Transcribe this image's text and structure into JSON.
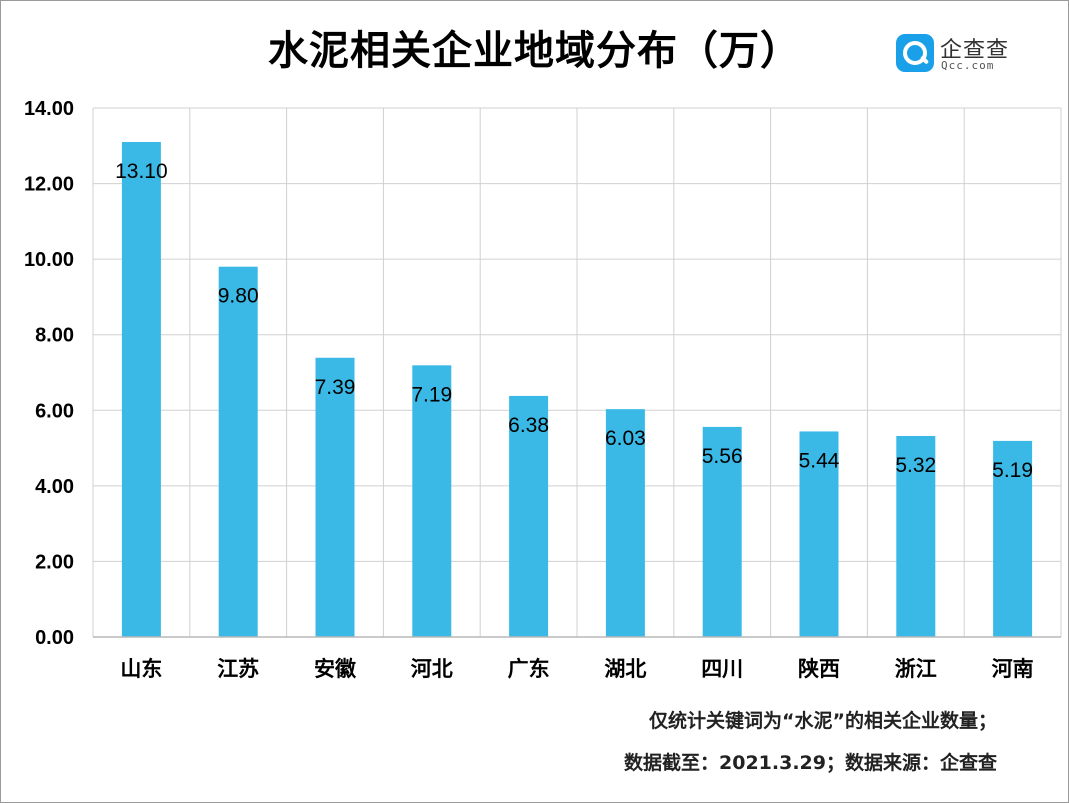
{
  "title": "水泥相关企业地域分布（万）",
  "logo": {
    "name": "企查查",
    "url": "Qcc.com"
  },
  "footnotes": [
    "仅统计关键词为“水泥”的相关企业数量；",
    "数据截至：2021.3.29；数据来源：企查查"
  ],
  "chart_data": {
    "type": "bar",
    "title": "水泥相关企业地域分布（万）",
    "categories": [
      "山东",
      "江苏",
      "安徽",
      "河北",
      "广东",
      "湖北",
      "四川",
      "陕西",
      "浙江",
      "河南"
    ],
    "values": [
      13.1,
      9.8,
      7.39,
      7.19,
      6.38,
      6.03,
      5.56,
      5.44,
      5.32,
      5.19
    ],
    "value_labels": [
      "13.10",
      "9.80",
      "7.39",
      "7.19",
      "6.38",
      "6.03",
      "5.56",
      "5.44",
      "5.32",
      "5.19"
    ],
    "ylim": [
      0,
      14
    ],
    "yticks": [
      0,
      2,
      4,
      6,
      8,
      10,
      12,
      14
    ],
    "ytick_labels": [
      "0.00",
      "2.00",
      "4.00",
      "6.00",
      "8.00",
      "10.00",
      "12.00",
      "14.00"
    ],
    "xlabel": "",
    "ylabel": "",
    "grid": "both",
    "bar_color": "#3ab9e6",
    "grid_color": "#d0d0d0"
  }
}
